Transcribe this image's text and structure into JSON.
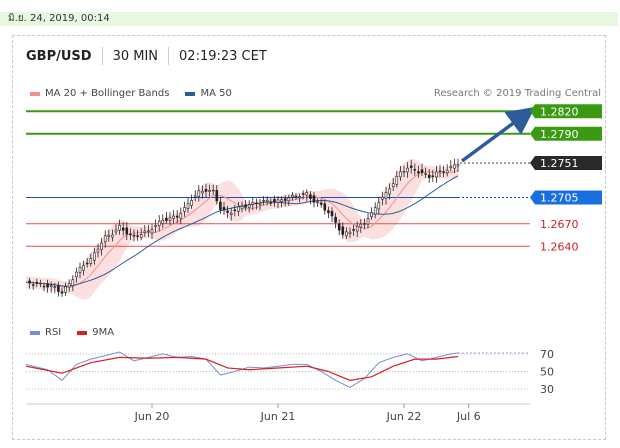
{
  "datetime": "มิ.ย. 24, 2019, 00:14",
  "header": {
    "symbol": "GBP/USD",
    "timeframe": "30 MIN",
    "clock": "02:19:23 CET"
  },
  "legend": [
    {
      "label": "MA 20 + Bollinger Bands",
      "color": "#f08f8f"
    },
    {
      "label": "MA 50",
      "color": "#2e5b9c"
    }
  ],
  "research": "Research © 2019 Trading Central",
  "rsi_legend": [
    {
      "label": "RSI",
      "color": "#6f8fd6"
    },
    {
      "label": "9MA",
      "color": "#d42020"
    }
  ],
  "chart_data": [
    {
      "type": "candlestick",
      "series": [
        {
          "name": "GBP/USD"
        },
        {
          "name": "MA 20 + Bollinger Bands"
        },
        {
          "name": "MA 50"
        }
      ],
      "ylim": [
        1.2555,
        1.2835
      ],
      "price_levels": [
        {
          "value": 1.282,
          "label": "1.2820",
          "kind": "resistance"
        },
        {
          "value": 1.279,
          "label": "1.2790",
          "kind": "resistance"
        },
        {
          "value": 1.2751,
          "label": "1.2751",
          "kind": "last"
        },
        {
          "value": 1.2705,
          "label": "1.2705",
          "kind": "pivot"
        },
        {
          "value": 1.267,
          "label": "1.2670",
          "kind": "support"
        },
        {
          "value": 1.264,
          "label": "1.2640",
          "kind": "support"
        }
      ],
      "close_path": [
        [
          0,
          1.2592
        ],
        [
          4,
          1.2589
        ],
        [
          8,
          1.2585
        ],
        [
          10,
          1.2578
        ],
        [
          12,
          1.259
        ],
        [
          14,
          1.2605
        ],
        [
          16,
          1.2615
        ],
        [
          18,
          1.2622
        ],
        [
          20,
          1.2638
        ],
        [
          22,
          1.2652
        ],
        [
          24,
          1.2657
        ],
        [
          26,
          1.2666
        ],
        [
          28,
          1.2658
        ],
        [
          30,
          1.2652
        ],
        [
          32,
          1.2657
        ],
        [
          34,
          1.266
        ],
        [
          36,
          1.2668
        ],
        [
          38,
          1.2675
        ],
        [
          40,
          1.2677
        ],
        [
          42,
          1.268
        ],
        [
          44,
          1.269
        ],
        [
          46,
          1.2703
        ],
        [
          48,
          1.2712
        ],
        [
          50,
          1.2715
        ],
        [
          52,
          1.2713
        ],
        [
          54,
          1.269
        ],
        [
          56,
          1.2684
        ],
        [
          58,
          1.2688
        ],
        [
          60,
          1.2693
        ],
        [
          62,
          1.2695
        ],
        [
          64,
          1.2698
        ],
        [
          66,
          1.27
        ],
        [
          68,
          1.27
        ],
        [
          70,
          1.27
        ],
        [
          72,
          1.2703
        ],
        [
          74,
          1.2706
        ],
        [
          76,
          1.2708
        ],
        [
          78,
          1.271
        ],
        [
          80,
          1.27
        ],
        [
          82,
          1.2695
        ],
        [
          84,
          1.2685
        ],
        [
          86,
          1.2672
        ],
        [
          88,
          1.2655
        ],
        [
          90,
          1.266
        ],
        [
          92,
          1.2665
        ],
        [
          94,
          1.2672
        ],
        [
          96,
          1.2683
        ],
        [
          98,
          1.27
        ],
        [
          100,
          1.271
        ],
        [
          102,
          1.2725
        ],
        [
          104,
          1.2738
        ],
        [
          106,
          1.2745
        ],
        [
          108,
          1.2741
        ],
        [
          110,
          1.2738
        ],
        [
          112,
          1.2732
        ],
        [
          114,
          1.2738
        ],
        [
          116,
          1.274
        ],
        [
          118,
          1.2745
        ],
        [
          120,
          1.2751
        ]
      ],
      "forecast_arrow": {
        "from": 1.2751,
        "to": 1.282
      }
    },
    {
      "type": "line",
      "title": "RSI",
      "series": [
        {
          "name": "RSI"
        },
        {
          "name": "9MA"
        }
      ],
      "yticks": [
        70,
        50,
        30
      ],
      "rsi_path": [
        [
          0,
          58
        ],
        [
          6,
          52
        ],
        [
          10,
          40
        ],
        [
          14,
          58
        ],
        [
          18,
          64
        ],
        [
          22,
          68
        ],
        [
          26,
          72
        ],
        [
          30,
          62
        ],
        [
          34,
          66
        ],
        [
          38,
          70
        ],
        [
          42,
          66
        ],
        [
          46,
          67
        ],
        [
          50,
          64
        ],
        [
          54,
          46
        ],
        [
          58,
          50
        ],
        [
          62,
          55
        ],
        [
          66,
          54
        ],
        [
          70,
          56
        ],
        [
          74,
          58
        ],
        [
          78,
          58
        ],
        [
          82,
          50
        ],
        [
          86,
          40
        ],
        [
          90,
          32
        ],
        [
          94,
          42
        ],
        [
          98,
          60
        ],
        [
          102,
          66
        ],
        [
          106,
          70
        ],
        [
          110,
          62
        ],
        [
          114,
          66
        ],
        [
          118,
          70
        ],
        [
          120,
          71
        ]
      ],
      "ma_path": [
        [
          0,
          56
        ],
        [
          10,
          48
        ],
        [
          18,
          60
        ],
        [
          26,
          66
        ],
        [
          34,
          65
        ],
        [
          42,
          66
        ],
        [
          50,
          64
        ],
        [
          56,
          54
        ],
        [
          62,
          52
        ],
        [
          70,
          54
        ],
        [
          78,
          56
        ],
        [
          84,
          50
        ],
        [
          90,
          40
        ],
        [
          96,
          44
        ],
        [
          102,
          56
        ],
        [
          108,
          64
        ],
        [
          114,
          64
        ],
        [
          120,
          67
        ]
      ]
    }
  ],
  "xaxis": {
    "range": [
      0,
      140
    ],
    "ticks": [
      {
        "pos": 35,
        "label": "Jun 20"
      },
      {
        "pos": 70,
        "label": "Jun 21"
      },
      {
        "pos": 105,
        "label": "Jun 22"
      },
      {
        "pos": 123,
        "label": "Jul 6"
      }
    ]
  }
}
